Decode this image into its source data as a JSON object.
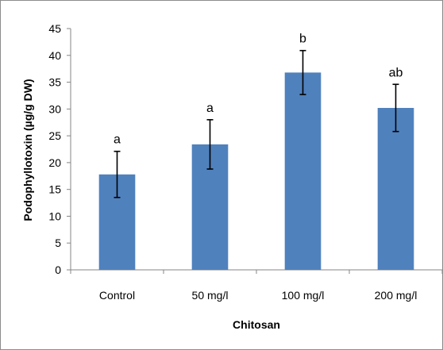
{
  "chart_data": {
    "type": "bar",
    "categories": [
      "Control",
      "50 mg/l",
      "100 mg/l",
      "200 mg/l"
    ],
    "values": [
      17.8,
      23.4,
      36.8,
      30.2
    ],
    "error": [
      4.3,
      4.6,
      4.1,
      4.4
    ],
    "significance_labels": [
      "a",
      "a",
      "b",
      "ab"
    ],
    "xlabel": "Chitosan",
    "ylabel": "Podophyllotoxin (µg/g DW)",
    "ylim": [
      0,
      45
    ],
    "yticks": [
      "0",
      "5",
      "10",
      "15",
      "20",
      "25",
      "30",
      "35",
      "40",
      "45"
    ],
    "bar_color": "#4f81bd",
    "grid": false
  }
}
